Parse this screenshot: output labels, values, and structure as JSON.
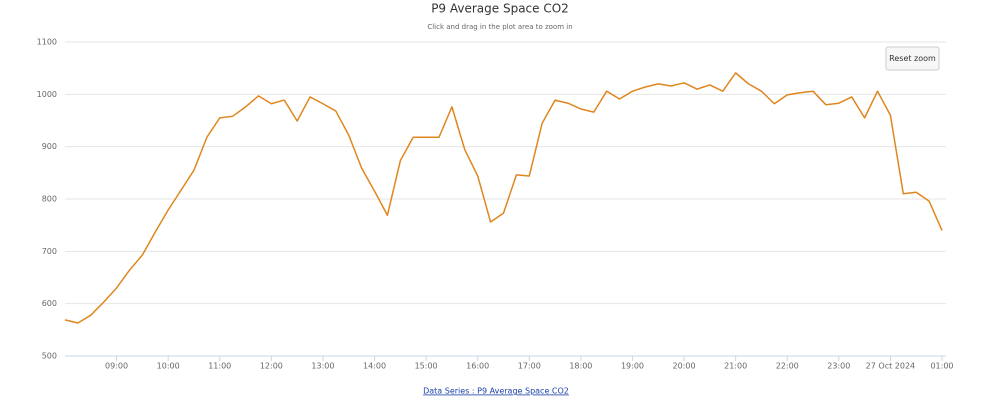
{
  "chart_data": {
    "type": "line",
    "title": "P9 Average Space CO2",
    "subtitle": "Click and drag in the plot area to zoom in",
    "button": "Reset zoom",
    "footer_link": "Data Series : P9 Average Space CO2",
    "x": [
      "08:00",
      "08:15",
      "08:30",
      "08:45",
      "09:00",
      "09:15",
      "09:30",
      "09:45",
      "10:00",
      "10:15",
      "10:30",
      "10:45",
      "11:00",
      "11:15",
      "11:30",
      "11:45",
      "12:00",
      "12:15",
      "12:30",
      "12:45",
      "13:00",
      "13:15",
      "13:30",
      "13:45",
      "14:00",
      "14:15",
      "14:30",
      "14:45",
      "15:00",
      "15:15",
      "15:30",
      "15:45",
      "16:00",
      "16:15",
      "16:30",
      "16:45",
      "17:00",
      "17:15",
      "17:30",
      "17:45",
      "18:00",
      "18:15",
      "18:30",
      "18:45",
      "19:00",
      "19:15",
      "19:30",
      "19:45",
      "20:00",
      "20:15",
      "20:30",
      "20:45",
      "21:00",
      "21:15",
      "21:30",
      "21:45",
      "22:00",
      "22:15",
      "22:30",
      "22:45",
      "23:00",
      "23:15",
      "23:30",
      "23:45",
      "00:00",
      "00:15",
      "00:30",
      "00:45",
      "01:00"
    ],
    "series": [
      {
        "name": "P9 Average Space CO2",
        "color": "#e0861e",
        "values": [
          569,
          563,
          578,
          603,
          630,
          664,
          693,
          737,
          779,
          817,
          855,
          918,
          955,
          958,
          976,
          997,
          982,
          989,
          949,
          995,
          982,
          968,
          922,
          859,
          815,
          769,
          873,
          918,
          918,
          918,
          976,
          894,
          844,
          756,
          773,
          846,
          844,
          945,
          989,
          983,
          972,
          966,
          1006,
          991,
          1006,
          1014,
          1020,
          1016,
          1022,
          1010,
          1018,
          1006,
          1041,
          1020,
          1006,
          982,
          999,
          1003,
          1006,
          980,
          983,
          995,
          955,
          1006,
          960,
          810,
          813,
          796,
          740
        ]
      }
    ],
    "xticks": [
      "09:00",
      "10:00",
      "11:00",
      "12:00",
      "13:00",
      "14:00",
      "15:00",
      "16:00",
      "17:00",
      "18:00",
      "19:00",
      "20:00",
      "21:00",
      "22:00",
      "23:00",
      {
        "value": "00:00",
        "label": "27 Oct 2024"
      },
      "01:00"
    ],
    "ylim": [
      500,
      1100
    ],
    "yticks": [
      500,
      600,
      700,
      800,
      900,
      1000,
      1100
    ],
    "grid": true
  }
}
